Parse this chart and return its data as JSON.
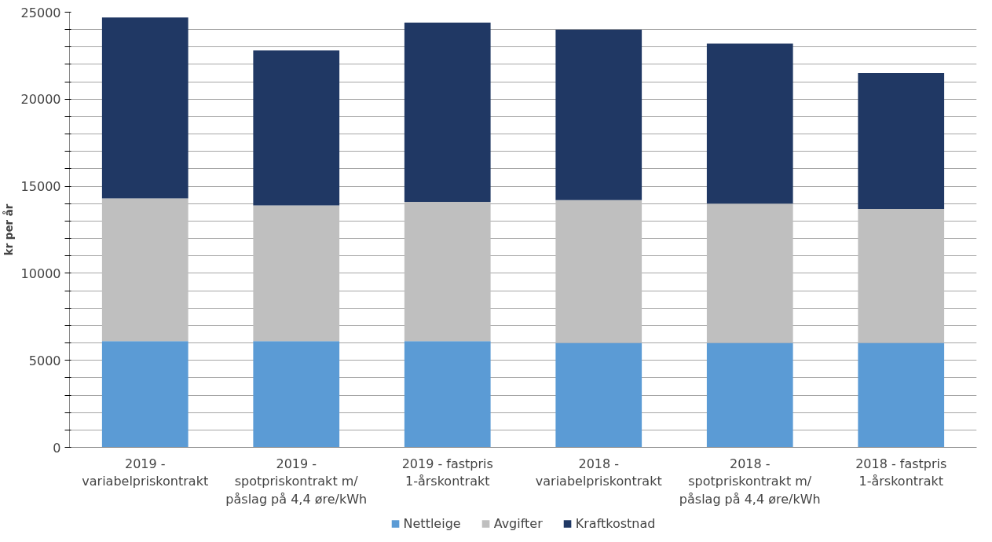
{
  "chart_data": {
    "type": "bar",
    "stacked": true,
    "ylabel": "kr per år",
    "categories": [
      "2019 - variabelpriskontrakt",
      "2019 - spotpriskontrakt m/ påslag på 4,4 øre/kWh",
      "2019 - fastpris 1-årskontrakt",
      "2018 - variabelpriskontrakt",
      "2018 - spotpriskontrakt m/ påslag på 4,4 øre/kWh",
      "2018 - fastpris 1-årskontrakt"
    ],
    "series": [
      {
        "name": "Nettleige",
        "color": "#5b9bd5",
        "values": [
          6100,
          6100,
          6100,
          6000,
          6000,
          6000
        ]
      },
      {
        "name": "Avgifter",
        "color": "#bfbfbf",
        "values": [
          8200,
          7800,
          8000,
          8200,
          8000,
          7700
        ]
      },
      {
        "name": "Kraftkostnad",
        "color": "#203864",
        "values": [
          10400,
          8900,
          10300,
          9800,
          9200,
          7800
        ]
      }
    ],
    "ylim": [
      0,
      25000
    ],
    "yticks": [
      0,
      {
        "value": 1000,
        "label": null
      },
      {
        "value": 2000,
        "label": null
      },
      {
        "value": 3000,
        "label": null
      },
      {
        "value": 4000,
        "label": null
      },
      5000,
      {
        "value": 6000,
        "label": null
      },
      {
        "value": 7000,
        "label": null
      },
      {
        "value": 8000,
        "label": null
      },
      {
        "value": 9000,
        "label": null
      },
      10000,
      {
        "value": 11000,
        "label": null
      },
      {
        "value": 12000,
        "label": null
      },
      {
        "value": 13000,
        "label": null
      },
      {
        "value": 14000,
        "label": null
      },
      15000,
      {
        "value": 16000,
        "label": null
      },
      {
        "value": 17000,
        "label": null
      },
      {
        "value": 18000,
        "label": null
      },
      {
        "value": 19000,
        "label": null
      },
      20000,
      {
        "value": 21000,
        "label": null
      },
      {
        "value": 22000,
        "label": null
      },
      {
        "value": 23000,
        "label": null
      },
      {
        "value": 24000,
        "label": null
      },
      25000
    ],
    "grid": "y",
    "legend": "bottom"
  }
}
